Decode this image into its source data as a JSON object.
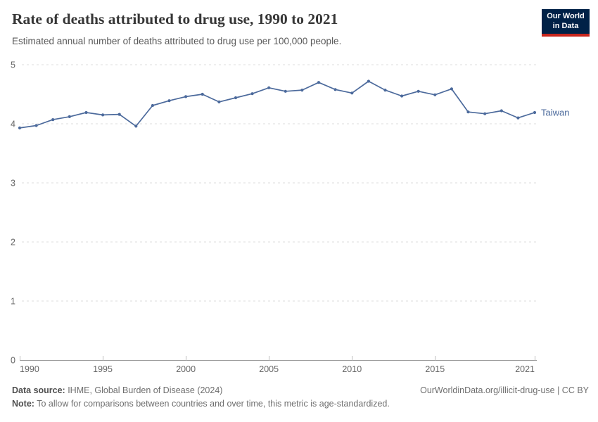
{
  "header": {
    "title": "Rate of deaths attributed to drug use, 1990 to 2021",
    "subtitle": "Estimated annual number of deaths attributed to drug use per 100,000 people."
  },
  "logo": {
    "line1": "Our World",
    "line2": "in Data",
    "bg_color": "#002147",
    "accent_color": "#C7261D"
  },
  "chart_data": {
    "type": "line",
    "title": "Rate of deaths attributed to drug use, 1990 to 2021",
    "x": [
      1990,
      1991,
      1992,
      1993,
      1994,
      1995,
      1996,
      1997,
      1998,
      1999,
      2000,
      2001,
      2002,
      2003,
      2004,
      2005,
      2006,
      2007,
      2008,
      2009,
      2010,
      2011,
      2012,
      2013,
      2014,
      2015,
      2016,
      2017,
      2018,
      2019,
      2020,
      2021
    ],
    "series": [
      {
        "name": "Taiwan",
        "color": "#4C6A9C",
        "values": [
          3.93,
          3.97,
          4.07,
          4.12,
          4.19,
          4.15,
          4.16,
          3.96,
          4.31,
          4.39,
          4.46,
          4.5,
          4.37,
          4.44,
          4.51,
          4.61,
          4.55,
          4.57,
          4.7,
          4.58,
          4.52,
          4.72,
          4.57,
          4.47,
          4.55,
          4.49,
          4.59,
          4.2,
          4.17,
          4.22,
          4.1,
          4.19
        ]
      }
    ],
    "xlabel": "",
    "ylabel": "",
    "xlim": [
      1990,
      2021
    ],
    "ylim": [
      0,
      5
    ],
    "x_ticks": [
      1990,
      1995,
      2000,
      2005,
      2010,
      2015,
      2021
    ],
    "y_ticks": [
      0,
      1,
      2,
      3,
      4,
      5
    ],
    "grid": "horizontal-dashed",
    "legend_position": "line-end-label",
    "entity_label": "Taiwan",
    "colors": {
      "gridline": "#dedede",
      "axis_line": "#9e9e9e",
      "tick_mark": "#bdbdbd",
      "tick_label": "#666666"
    }
  },
  "footer": {
    "datasource_label": "Data source:",
    "datasource_value": " IHME, Global Burden of Disease (2024)",
    "link": "OurWorldinData.org/illicit-drug-use | CC BY",
    "note_label": "Note:",
    "note_value": " To allow for comparisons between countries and over time, this metric is age-standardized."
  }
}
